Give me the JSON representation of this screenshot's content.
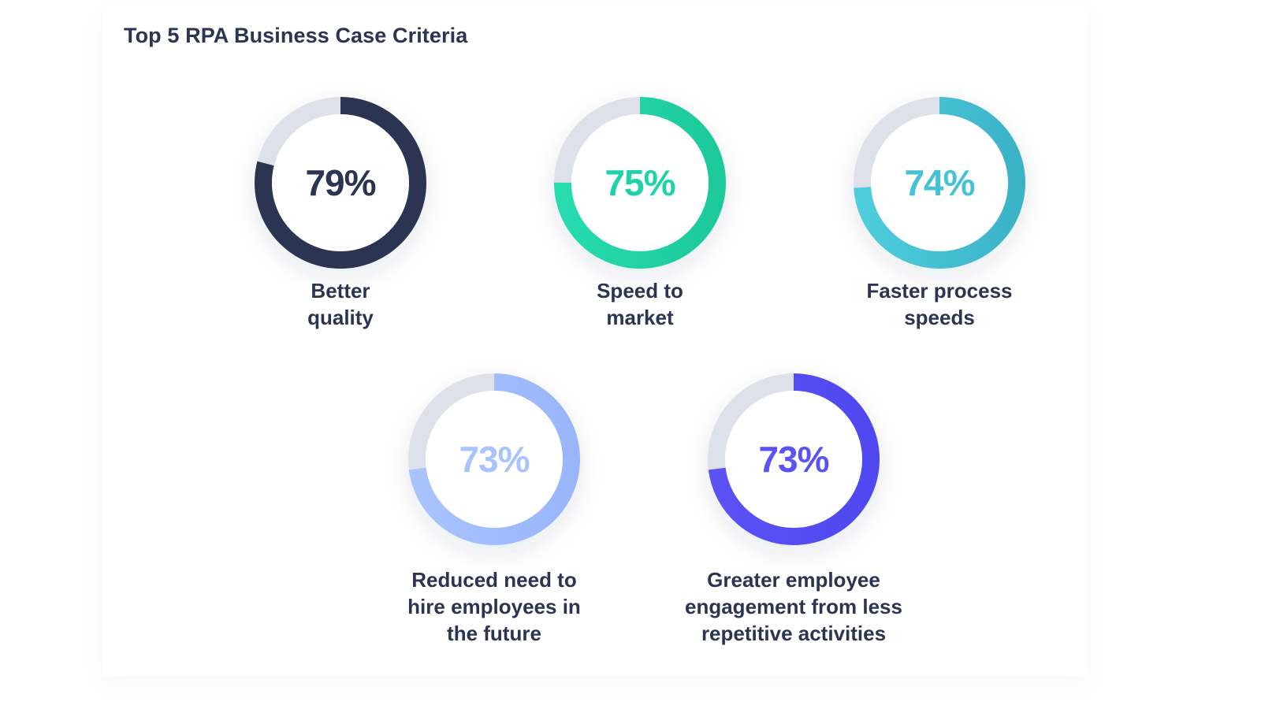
{
  "chart_data": {
    "type": "pie",
    "title": "Top 5 RPA Business Case Criteria",
    "unit": "%",
    "max": 100,
    "items": [
      {
        "value_label": "79%",
        "value": 79,
        "label_lines": [
          "Better",
          "quality"
        ],
        "color": "#2b3450",
        "color_end": "#2b3450"
      },
      {
        "value_label": "75%",
        "value": 75,
        "label_lines": [
          "Speed to",
          "market"
        ],
        "color": "#26dcb0",
        "color_end": "#1cc99a"
      },
      {
        "value_label": "74%",
        "value": 74,
        "label_lines": [
          "Faster process",
          "speeds"
        ],
        "color": "#4ecddd",
        "color_end": "#3bb3c6"
      },
      {
        "value_label": "73%",
        "value": 73,
        "label_lines": [
          "Reduced need to",
          "hire employees in",
          "the future"
        ],
        "color": "#a9c3ff",
        "color_end": "#9ab6fb"
      },
      {
        "value_label": "73%",
        "value": 73,
        "label_lines": [
          "Greater employee",
          "engagement from less",
          "repetitive activities"
        ],
        "color": "#5b52f5",
        "color_end": "#4f48f0"
      }
    ],
    "track_color": "#dfe1ea",
    "value_text_colors": [
      "#2b3450",
      "#1fd3a8",
      "#45c2d6",
      "#a9c3ff",
      "#5b52f5"
    ]
  }
}
